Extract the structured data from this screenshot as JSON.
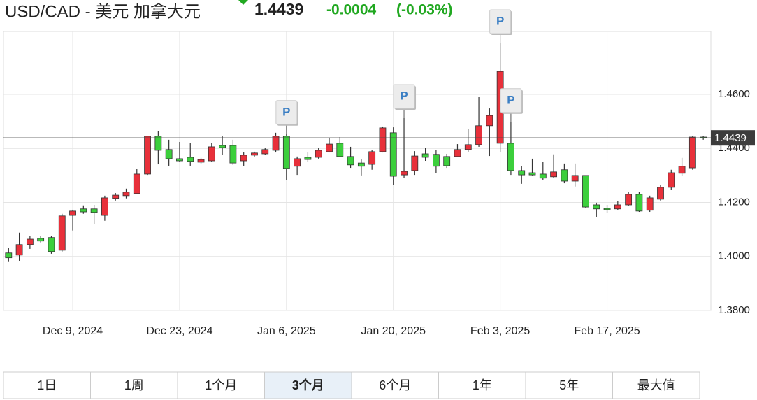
{
  "quote": {
    "price": 1.4439,
    "change": -0.0004,
    "change_percent": {
      "value": -0.03,
      "label": "(-0.03%)"
    }
  },
  "chart_data": {
    "type": "candlestick",
    "title": "USD/CAD - 美元 加拿大元",
    "categories": [
      null,
      null,
      null,
      null,
      null,
      null,
      "Dec 9, 2024",
      null,
      null,
      null,
      null,
      null,
      null,
      null,
      null,
      null,
      "Dec 23, 2024",
      null,
      null,
      null,
      null,
      null,
      null,
      null,
      null,
      null,
      "Jan 6, 2025",
      null,
      null,
      null,
      null,
      null,
      null,
      null,
      null,
      null,
      "Jan 20, 2025",
      null,
      null,
      null,
      null,
      null,
      null,
      null,
      null,
      null,
      "Feb 3, 2025",
      null,
      null,
      null,
      null,
      null,
      null,
      null,
      null,
      null,
      "Feb 17, 2025",
      null,
      null,
      null,
      null,
      null,
      null,
      null,
      null,
      null
    ],
    "open": [
      1.4013,
      1.4005,
      1.4044,
      1.4067,
      1.407,
      1.4023,
      1.4152,
      1.4176,
      1.4176,
      1.4152,
      1.4215,
      1.4225,
      1.4233,
      1.4305,
      1.4445,
      1.4396,
      1.4362,
      1.4367,
      1.4349,
      1.4354,
      1.4411,
      1.4411,
      1.4354,
      1.4375,
      1.438,
      1.4393,
      1.4445,
      1.4334,
      1.4367,
      1.4367,
      1.4388,
      1.4419,
      1.437,
      1.4346,
      1.4341,
      1.4388,
      1.4458,
      1.4302,
      1.4318,
      1.438,
      1.4378,
      1.437,
      1.437,
      1.4396,
      1.4414,
      1.4484,
      1.4419,
      1.4419,
      1.4318,
      1.431,
      1.4305,
      1.4295,
      1.4321,
      1.4279,
      1.43,
      1.4191,
      1.4178,
      1.4176,
      1.4191,
      1.423,
      1.4171,
      1.4212,
      1.4256,
      1.4308,
      1.4328,
      1.4442
    ],
    "high": [
      1.4031,
      1.4088,
      1.4075,
      1.4077,
      1.4075,
      1.4158,
      1.4173,
      1.4189,
      1.4191,
      1.4225,
      1.4235,
      1.4251,
      1.4323,
      1.4445,
      1.4463,
      1.4432,
      1.4424,
      1.4419,
      1.4365,
      1.4419,
      1.4445,
      1.4432,
      1.4385,
      1.4388,
      1.4401,
      1.4458,
      1.4453,
      1.437,
      1.4385,
      1.4403,
      1.444,
      1.4442,
      1.4406,
      1.4359,
      1.4393,
      1.4481,
      1.4478,
      1.4512,
      1.439,
      1.4401,
      1.4393,
      1.438,
      1.4416,
      1.4473,
      1.4592,
      1.4548,
      1.4789,
      1.4497,
      1.4334,
      1.4362,
      1.4349,
      1.4378,
      1.4344,
      1.4344,
      1.43,
      1.4199,
      1.4191,
      1.4204,
      1.424,
      1.424,
      1.4225,
      1.4266,
      1.4321,
      1.4365,
      1.4445,
      1.4447
    ],
    "low": [
      1.3982,
      1.3984,
      1.4028,
      1.4052,
      1.401,
      1.4018,
      1.4096,
      1.4158,
      1.4121,
      1.4132,
      1.4207,
      1.4215,
      1.423,
      1.4302,
      1.4341,
      1.4336,
      1.4349,
      1.4336,
      1.4344,
      1.4349,
      1.4375,
      1.4339,
      1.4336,
      1.437,
      1.4375,
      1.4385,
      1.4282,
      1.4302,
      1.4349,
      1.4362,
      1.4385,
      1.4367,
      1.4328,
      1.43,
      1.4321,
      1.4385,
      1.4264,
      1.429,
      1.4302,
      1.4354,
      1.431,
      1.4328,
      1.4367,
      1.4388,
      1.4406,
      1.4372,
      1.4385,
      1.4302,
      1.4269,
      1.43,
      1.4282,
      1.429,
      1.4271,
      1.4259,
      1.4178,
      1.4147,
      1.416,
      1.4171,
      1.4186,
      1.4165,
      1.4165,
      1.4207,
      1.4246,
      1.4297,
      1.4321,
      1.4432
    ],
    "close": [
      1.3995,
      1.4044,
      1.4064,
      1.4057,
      1.4018,
      1.415,
      1.4168,
      1.4165,
      1.4163,
      1.4217,
      1.4227,
      1.4238,
      1.4305,
      1.4445,
      1.4393,
      1.4362,
      1.4354,
      1.4352,
      1.4359,
      1.4406,
      1.4403,
      1.4346,
      1.4375,
      1.4383,
      1.4396,
      1.4445,
      1.4326,
      1.4362,
      1.4359,
      1.4393,
      1.4416,
      1.437,
      1.4339,
      1.4334,
      1.4388,
      1.4476,
      1.4297,
      1.4315,
      1.4372,
      1.4367,
      1.4334,
      1.4336,
      1.4396,
      1.4414,
      1.4484,
      1.4522,
      1.4685,
      1.4318,
      1.4302,
      1.4302,
      1.429,
      1.4313,
      1.4279,
      1.43,
      1.4183,
      1.4176,
      1.4173,
      1.4191,
      1.423,
      1.4168,
      1.4217,
      1.4256,
      1.431,
      1.4334,
      1.4442,
      1.4439
    ],
    "up_color": "#e8303a",
    "down_color": "#3ccf3c",
    "ylim": [
      1.38,
      1.4833
    ],
    "yticks": [
      {
        "value": 1.38,
        "label": "1.3800"
      },
      {
        "value": 1.4,
        "label": "1.4000"
      },
      {
        "value": 1.42,
        "label": "1.4200"
      },
      {
        "value": 1.44,
        "label": "1.4400"
      },
      {
        "value": 1.46,
        "label": "1.4600"
      }
    ],
    "grid": true,
    "markers": [
      {
        "index": 26,
        "label": "P"
      },
      {
        "index": 37,
        "label": "P"
      },
      {
        "index": 46,
        "label": "P"
      },
      {
        "index": 47,
        "label": "P"
      }
    ]
  },
  "range_buttons": {
    "options": [
      "1日",
      "1周",
      "1个月",
      "3个月",
      "6个月",
      "1年",
      "5年",
      "最大值"
    ],
    "selected_index": 3
  }
}
